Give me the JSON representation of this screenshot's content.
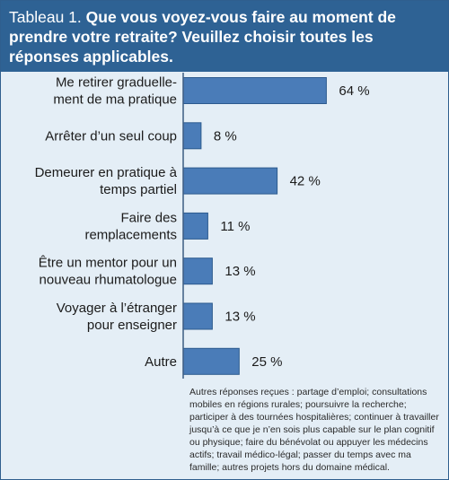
{
  "header": {
    "label": "Tableau 1.",
    "question": "Que vous voyez-vous faire au moment de prendre votre retraite? Veuillez choisir toutes les réponses applicables."
  },
  "chart_data": {
    "type": "bar",
    "orientation": "horizontal",
    "categories": [
      [
        "Me retirer graduelle-",
        "ment de ma pratique"
      ],
      [
        "Arrêter d’un seul coup"
      ],
      [
        "Demeurer en pratique à",
        "temps partiel"
      ],
      [
        "Faire des",
        "remplacements"
      ],
      [
        "Être un mentor pour un",
        "nouveau rhumatologue"
      ],
      [
        "Voyager à l’étranger",
        "pour enseigner"
      ],
      [
        "Autre"
      ]
    ],
    "values": [
      64,
      8,
      42,
      11,
      13,
      13,
      25
    ],
    "value_labels": [
      "64 %",
      "8 %",
      "42 %",
      "11 %",
      "13 %",
      "13 %",
      "25 %"
    ],
    "unit": "%",
    "xlim": [
      0,
      100
    ],
    "grid": false,
    "colors": {
      "bar": "#4a7cb8",
      "bar_edge": "#2c5a8e",
      "header": "#2e6294",
      "background": "#e4eef6",
      "axis": "#3c5d82"
    }
  },
  "footnote": "Autres réponses reçues : partage d’emploi; consultations mobiles en régions rurales; poursuivre la recherche; participer à des tournées hospitalières; continuer à travailler jusqu’à ce que je n’en sois plus capable sur le plan cognitif ou physique; faire du bénévolat ou appuyer les médecins actifs; travail médico-légal; passer du temps avec ma famille; autres projets hors du domaine médical."
}
